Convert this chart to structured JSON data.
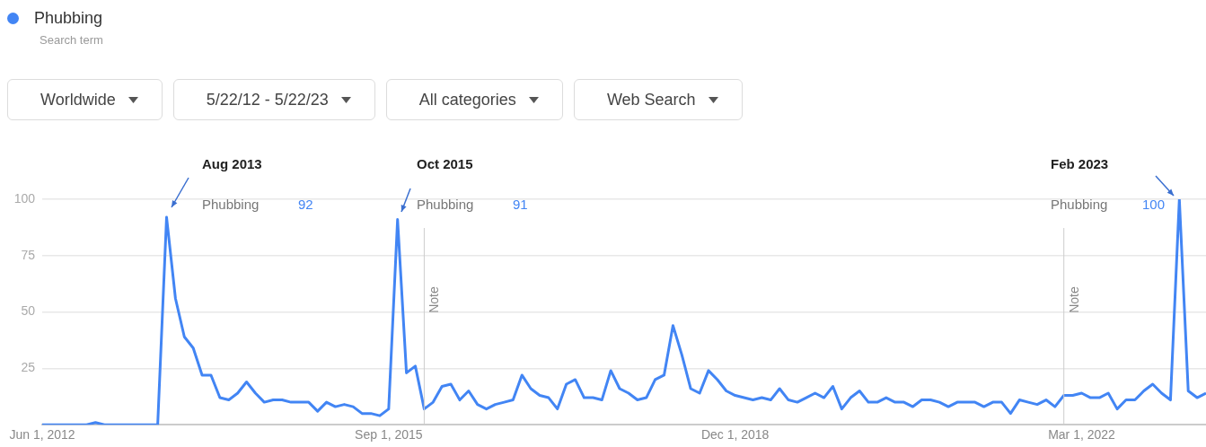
{
  "chart_data": {
    "type": "line",
    "legend": "top left",
    "legend_title": "Search term",
    "annotations": [
      "Worldwide",
      "5/22/12 - 5/22/23",
      "All categories",
      "Web Search",
      "Aug 2013",
      "92",
      "Oct 2015",
      "91",
      "Feb 2023",
      "100"
    ],
    "x": [
      "2012-06",
      "2012-07",
      "2012-08",
      "2012-09",
      "2012-10",
      "2012-11",
      "2012-12",
      "2013-01",
      "2013-02",
      "2013-03",
      "2013-04",
      "2013-05",
      "2013-06",
      "2013-07",
      "2013-08",
      "2013-09",
      "2013-10",
      "2013-11",
      "2013-12",
      "2014-01",
      "2014-02",
      "2014-03",
      "2014-04",
      "2014-05",
      "2014-06",
      "2014-07",
      "2014-08",
      "2014-09",
      "2014-10",
      "2014-11",
      "2014-12",
      "2015-01",
      "2015-02",
      "2015-03",
      "2015-04",
      "2015-05",
      "2015-06",
      "2015-07",
      "2015-08",
      "2015-09",
      "2015-10",
      "2015-11",
      "2015-12",
      "2016-01",
      "2016-02",
      "2016-03",
      "2016-04",
      "2016-05",
      "2016-06",
      "2016-07",
      "2016-08",
      "2016-09",
      "2016-10",
      "2016-11",
      "2016-12",
      "2017-01",
      "2017-02",
      "2017-03",
      "2017-04",
      "2017-05",
      "2017-06",
      "2017-07",
      "2017-08",
      "2017-09",
      "2017-10",
      "2017-11",
      "2017-12",
      "2018-01",
      "2018-02",
      "2018-03",
      "2018-04",
      "2018-05",
      "2018-06",
      "2018-07",
      "2018-08",
      "2018-09",
      "2018-10",
      "2018-11",
      "2018-12",
      "2019-01",
      "2019-02",
      "2019-03",
      "2019-04",
      "2019-05",
      "2019-06",
      "2019-07",
      "2019-08",
      "2019-09",
      "2019-10",
      "2019-11",
      "2019-12",
      "2020-01",
      "2020-02",
      "2020-03",
      "2020-04",
      "2020-05",
      "2020-06",
      "2020-07",
      "2020-08",
      "2020-09",
      "2020-10",
      "2020-11",
      "2020-12",
      "2021-01",
      "2021-02",
      "2021-03",
      "2021-04",
      "2021-05",
      "2021-06",
      "2021-07",
      "2021-08",
      "2021-09",
      "2021-10",
      "2021-11",
      "2021-12",
      "2022-01",
      "2022-02",
      "2022-03",
      "2022-04",
      "2022-05",
      "2022-06",
      "2022-07",
      "2022-08",
      "2022-09",
      "2022-10",
      "2022-11",
      "2022-12",
      "2023-01",
      "2023-02",
      "2023-03",
      "2023-04",
      "2023-05"
    ],
    "series": [
      {
        "name": "Phubbing",
        "color": "#4285f4",
        "values": [
          0,
          0,
          0,
          0,
          0,
          0,
          1,
          0,
          0,
          0,
          0,
          0,
          0,
          0,
          92,
          56,
          39,
          34,
          22,
          22,
          12,
          11,
          14,
          19,
          14,
          10,
          11,
          11,
          10,
          10,
          10,
          6,
          10,
          8,
          9,
          8,
          5,
          5,
          4,
          7,
          91,
          23,
          26,
          7,
          10,
          17,
          18,
          11,
          15,
          9,
          7,
          9,
          10,
          11,
          22,
          16,
          13,
          12,
          7,
          18,
          20,
          12,
          12,
          11,
          24,
          16,
          14,
          11,
          12,
          20,
          22,
          44,
          31,
          16,
          14,
          24,
          20,
          15,
          13,
          12,
          11,
          12,
          11,
          16,
          11,
          10,
          12,
          14,
          12,
          17,
          7,
          12,
          15,
          10,
          10,
          12,
          10,
          10,
          8,
          11,
          11,
          10,
          8,
          10,
          10,
          10,
          8,
          10,
          10,
          5,
          11,
          10,
          9,
          11,
          8,
          13,
          13,
          14,
          12,
          12,
          14,
          7,
          11,
          11,
          15,
          18,
          14,
          11,
          100,
          15,
          12,
          14
        ]
      }
    ],
    "xlim": [
      "2012-06",
      "2023-05"
    ],
    "xticks": [
      {
        "value": "2012-06-01",
        "label": "Jun 1, 2012"
      },
      {
        "value": "2015-09-01",
        "label": "Sep 1, 2015"
      },
      {
        "value": "2018-12-01",
        "label": "Dec 1, 2018"
      },
      {
        "value": "2022-03-01",
        "label": "Mar 1, 2022"
      }
    ],
    "ylim": [
      0,
      100
    ],
    "yticks": [
      {
        "value": 0,
        "label": null
      },
      25,
      50,
      75,
      100
    ],
    "grid": "y",
    "ref_lines": [
      {
        "axis": "x",
        "value": "2016-01",
        "label": "Note",
        "color": "#cccccc"
      },
      {
        "axis": "x",
        "value": "2022-01",
        "label": "Note",
        "color": "#cccccc"
      }
    ]
  }
}
